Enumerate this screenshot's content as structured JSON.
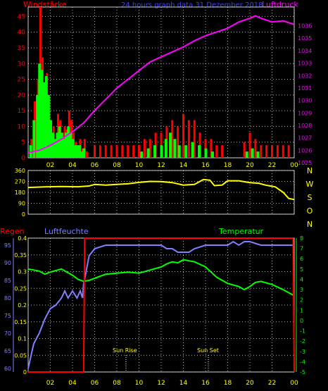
{
  "header": {
    "left_label": "Windstärke",
    "title": "24 hours graph data  31 Dezember 2018",
    "right_label": "Luftdruck"
  },
  "colors": {
    "background": "#000000",
    "wind_gust": "#ff0000",
    "wind_avg": "#00ff00",
    "pressure": "#ff00ff",
    "direction": "#ffff00",
    "rain": "#ff0000",
    "humidity": "#8080ff",
    "temperature": "#00ff00",
    "grid": "#ffffff",
    "frame": "#c8c8c8",
    "axis_text_yellow": "#ffff00"
  },
  "chart_data": [
    {
      "type": "bar",
      "name": "wind_and_pressure",
      "x_ticks": [
        "02",
        "04",
        "06",
        "08",
        "10",
        "12",
        "14",
        "16",
        "18",
        "20",
        "22",
        "00"
      ],
      "y_left_ticks": [
        "0",
        "5",
        "10",
        "15",
        "20",
        "25",
        "30",
        "35",
        "40",
        "45"
      ],
      "y_left_range": [
        0,
        48
      ],
      "y_right_ticks": [
        "1036",
        "1035",
        "1034",
        "1033",
        "1032",
        "1031",
        "1030",
        "1029",
        "1028",
        "1027",
        "1026",
        "1025"
      ],
      "y_right_range": [
        1025.4,
        1037.5
      ],
      "x_range_hours": [
        0,
        24
      ],
      "gust": [
        [
          0.3,
          6
        ],
        [
          0.6,
          18
        ],
        [
          0.9,
          25
        ],
        [
          1.1,
          48
        ],
        [
          1.3,
          32
        ],
        [
          1.5,
          20
        ],
        [
          1.7,
          27
        ],
        [
          1.9,
          14
        ],
        [
          2.1,
          8
        ],
        [
          2.3,
          10
        ],
        [
          2.5,
          6
        ],
        [
          2.7,
          14
        ],
        [
          2.9,
          12
        ],
        [
          3.1,
          8
        ],
        [
          3.3,
          10
        ],
        [
          3.5,
          9
        ],
        [
          3.7,
          15
        ],
        [
          3.9,
          12
        ],
        [
          4.1,
          8
        ],
        [
          4.3,
          5
        ],
        [
          4.5,
          4
        ],
        [
          4.7,
          6
        ],
        [
          4.9,
          3
        ],
        [
          5.1,
          6
        ],
        [
          5.3,
          2
        ],
        [
          6.0,
          4
        ],
        [
          6.5,
          4
        ],
        [
          7.0,
          4
        ],
        [
          7.5,
          4
        ],
        [
          8.0,
          4
        ],
        [
          8.5,
          4
        ],
        [
          9.0,
          4
        ],
        [
          9.5,
          4
        ],
        [
          10.0,
          4
        ],
        [
          10.5,
          6
        ],
        [
          11.0,
          6
        ],
        [
          11.5,
          8
        ],
        [
          12.0,
          8
        ],
        [
          12.5,
          10
        ],
        [
          13.0,
          12
        ],
        [
          13.5,
          10
        ],
        [
          14.0,
          14
        ],
        [
          14.5,
          12
        ],
        [
          15.0,
          12
        ],
        [
          15.5,
          8
        ],
        [
          16.0,
          6
        ],
        [
          16.5,
          6
        ],
        [
          17.0,
          4
        ],
        [
          17.5,
          4
        ],
        [
          19.5,
          5
        ],
        [
          20.0,
          8
        ],
        [
          20.5,
          6
        ],
        [
          21.0,
          4
        ],
        [
          21.5,
          4
        ],
        [
          22.0,
          4
        ],
        [
          22.5,
          4
        ],
        [
          23.0,
          4
        ],
        [
          23.5,
          4
        ]
      ],
      "average": [
        [
          0.2,
          4
        ],
        [
          0.5,
          12
        ],
        [
          0.8,
          20
        ],
        [
          1.0,
          30
        ],
        [
          1.2,
          28
        ],
        [
          1.4,
          24
        ],
        [
          1.6,
          26
        ],
        [
          1.8,
          20
        ],
        [
          2.0,
          12
        ],
        [
          2.2,
          8
        ],
        [
          2.4,
          6
        ],
        [
          2.6,
          8
        ],
        [
          2.8,
          10
        ],
        [
          3.0,
          8
        ],
        [
          3.2,
          6
        ],
        [
          3.4,
          8
        ],
        [
          3.6,
          10
        ],
        [
          3.8,
          8
        ],
        [
          4.0,
          6
        ],
        [
          4.2,
          4
        ],
        [
          4.4,
          4
        ],
        [
          4.6,
          4
        ],
        [
          4.8,
          2
        ],
        [
          5.0,
          3
        ],
        [
          10.2,
          2
        ],
        [
          10.8,
          3
        ],
        [
          11.4,
          4
        ],
        [
          12.0,
          4
        ],
        [
          12.4,
          6
        ],
        [
          12.8,
          8
        ],
        [
          13.2,
          6
        ],
        [
          13.6,
          4
        ],
        [
          14.2,
          4
        ],
        [
          14.8,
          5
        ],
        [
          15.4,
          4
        ],
        [
          16.0,
          3
        ],
        [
          16.6,
          2
        ],
        [
          19.7,
          2
        ],
        [
          20.2,
          3
        ],
        [
          20.7,
          2
        ]
      ],
      "pressure": [
        [
          0,
          1025.8
        ],
        [
          1,
          1026.0
        ],
        [
          2,
          1026.4
        ],
        [
          3,
          1026.9
        ],
        [
          4,
          1027.5
        ],
        [
          5,
          1028.2
        ],
        [
          6,
          1029.2
        ],
        [
          7,
          1030.1
        ],
        [
          8,
          1031.0
        ],
        [
          9,
          1031.7
        ],
        [
          10,
          1032.4
        ],
        [
          11,
          1033.1
        ],
        [
          12,
          1033.5
        ],
        [
          13,
          1033.9
        ],
        [
          14,
          1034.3
        ],
        [
          15,
          1034.8
        ],
        [
          16,
          1035.2
        ],
        [
          17,
          1035.5
        ],
        [
          18,
          1035.8
        ],
        [
          19,
          1036.3
        ],
        [
          20,
          1036.6
        ],
        [
          20.5,
          1036.8
        ],
        [
          21,
          1036.6
        ],
        [
          22,
          1036.3
        ],
        [
          23,
          1036.4
        ],
        [
          24,
          1036.1
        ]
      ]
    },
    {
      "type": "line",
      "name": "wind_direction",
      "y_ticks": [
        "360",
        "270",
        "180",
        "90",
        "0"
      ],
      "y_range": [
        0,
        360
      ],
      "right_labels": [
        "N",
        "W",
        "S",
        "O",
        "N"
      ],
      "series": [
        [
          0,
          220
        ],
        [
          1.5,
          225
        ],
        [
          3,
          228
        ],
        [
          4.5,
          226
        ],
        [
          5.5,
          232
        ],
        [
          6,
          245
        ],
        [
          7,
          240
        ],
        [
          8,
          245
        ],
        [
          9,
          250
        ],
        [
          10,
          262
        ],
        [
          11,
          270
        ],
        [
          12,
          268
        ],
        [
          13,
          260
        ],
        [
          14,
          240
        ],
        [
          15,
          245
        ],
        [
          15.8,
          285
        ],
        [
          16.4,
          280
        ],
        [
          16.8,
          235
        ],
        [
          17.5,
          240
        ],
        [
          18,
          275
        ],
        [
          19,
          275
        ],
        [
          20,
          260
        ],
        [
          20.8,
          255
        ],
        [
          21.4,
          240
        ],
        [
          22.3,
          225
        ],
        [
          23,
          180
        ],
        [
          23.5,
          130
        ],
        [
          24,
          120
        ]
      ]
    },
    {
      "type": "line",
      "name": "rain_humidity_temperature",
      "left_label_rain": "Regen",
      "left_label_humidity": "Luftfeuchte",
      "right_label": "Temperatur",
      "rain_ticks": [
        "0.4",
        "0.35",
        "0.3",
        "0.25",
        "0.2",
        "0.15",
        "0.1",
        "0.05",
        "0"
      ],
      "rain_range": [
        0,
        0.4
      ],
      "humidity_ticks": [
        "95",
        "90",
        "85",
        "80",
        "75",
        "70",
        "65",
        "60"
      ],
      "humidity_range": [
        59,
        97
      ],
      "temperature_ticks": [
        "8",
        "7",
        "6",
        "5",
        "4",
        "3",
        "2",
        "1",
        "0",
        "-1",
        "-2",
        "-3",
        "-4",
        "-5"
      ],
      "temperature_range": [
        -5,
        8
      ],
      "annotations": [
        "Sun Rise",
        "Sun Set"
      ],
      "rain": [
        [
          0,
          0
        ],
        [
          5.0,
          0
        ],
        [
          5.1,
          0.4
        ],
        [
          23.9,
          0.4
        ],
        [
          24,
          0
        ]
      ],
      "humidity": [
        [
          0,
          60
        ],
        [
          0.5,
          67
        ],
        [
          1,
          70
        ],
        [
          1.5,
          74
        ],
        [
          2,
          77
        ],
        [
          2.5,
          78
        ],
        [
          3,
          80
        ],
        [
          3.3,
          82
        ],
        [
          3.6,
          80
        ],
        [
          4,
          82
        ],
        [
          4.4,
          80
        ],
        [
          4.7,
          82
        ],
        [
          4.9,
          80
        ],
        [
          5.0,
          84
        ],
        [
          5.2,
          87
        ],
        [
          5.5,
          92
        ],
        [
          6,
          94
        ],
        [
          7,
          95
        ],
        [
          8,
          95
        ],
        [
          9,
          95
        ],
        [
          10,
          95
        ],
        [
          11,
          95
        ],
        [
          12,
          95
        ],
        [
          12.5,
          94
        ],
        [
          13,
          94
        ],
        [
          13.5,
          93
        ],
        [
          14,
          93
        ],
        [
          14.5,
          93
        ],
        [
          15,
          94
        ],
        [
          16,
          95
        ],
        [
          17,
          95
        ],
        [
          18,
          95
        ],
        [
          18.5,
          96
        ],
        [
          19,
          95
        ],
        [
          19.5,
          96
        ],
        [
          20,
          96
        ],
        [
          21,
          95
        ],
        [
          22,
          95
        ],
        [
          23,
          95
        ],
        [
          24,
          95
        ]
      ],
      "temperature": [
        [
          0,
          5.0
        ],
        [
          1,
          4.8
        ],
        [
          1.5,
          4.5
        ],
        [
          2,
          4.7
        ],
        [
          3,
          5.0
        ],
        [
          3.5,
          4.7
        ],
        [
          4,
          4.4
        ],
        [
          4.5,
          4.0
        ],
        [
          5,
          3.8
        ],
        [
          5.5,
          3.9
        ],
        [
          6,
          4.1
        ],
        [
          6.5,
          4.3
        ],
        [
          7,
          4.5
        ],
        [
          8,
          4.6
        ],
        [
          9,
          4.7
        ],
        [
          10,
          4.6
        ],
        [
          11,
          4.9
        ],
        [
          12,
          5.2
        ],
        [
          12.5,
          5.5
        ],
        [
          13,
          5.7
        ],
        [
          13.5,
          5.6
        ],
        [
          14,
          5.9
        ],
        [
          14.5,
          5.8
        ],
        [
          15,
          5.7
        ],
        [
          16,
          5.2
        ],
        [
          16.5,
          4.7
        ],
        [
          17,
          4.2
        ],
        [
          17.5,
          3.9
        ],
        [
          18,
          3.6
        ],
        [
          19,
          3.3
        ],
        [
          19.5,
          3.0
        ],
        [
          20,
          3.3
        ],
        [
          20.5,
          3.7
        ],
        [
          21,
          3.8
        ],
        [
          22,
          3.5
        ],
        [
          23,
          3.0
        ],
        [
          24,
          2.4
        ]
      ]
    }
  ]
}
